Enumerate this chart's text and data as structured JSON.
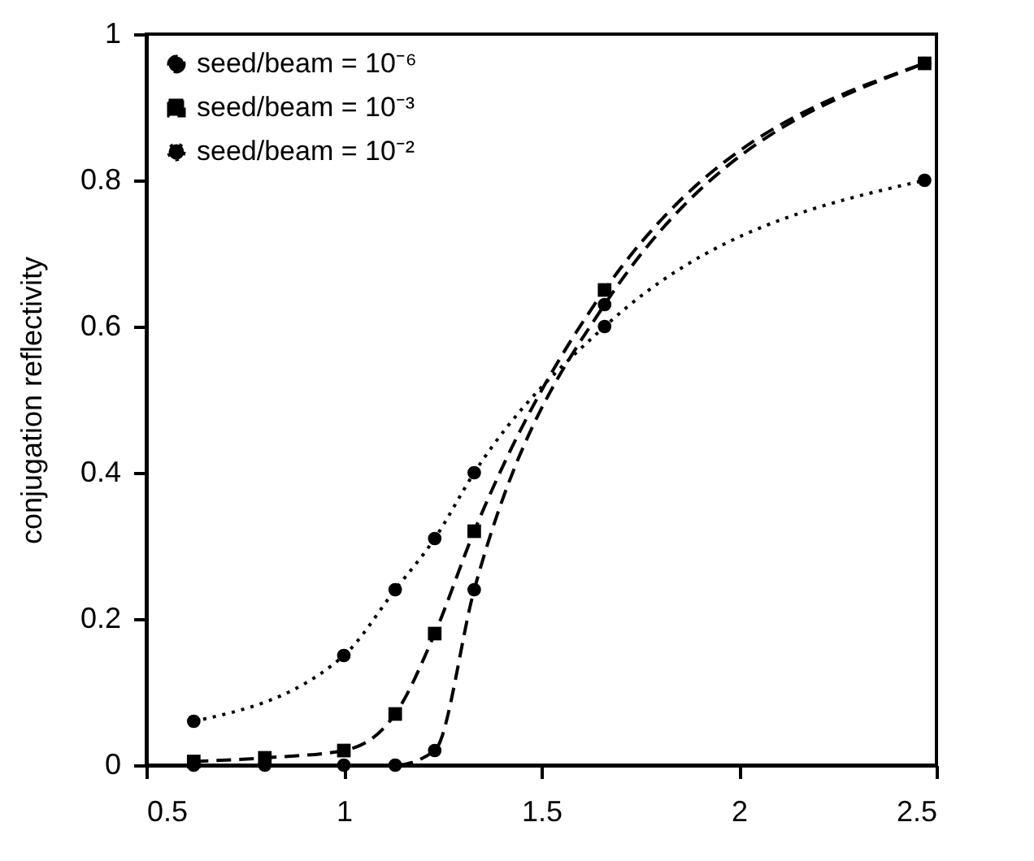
{
  "chart_data": {
    "type": "line",
    "ylabel": "conjugation   reflectivity",
    "xlim": [
      0.5,
      2.5
    ],
    "xticks": [
      0.5,
      1,
      1.5,
      2,
      2.5
    ],
    "ylim": [
      0,
      1
    ],
    "yticks": [
      0,
      0.2,
      0.4,
      0.6,
      0.8,
      1
    ],
    "grid": false,
    "legend": "top left",
    "series": [
      {
        "name": "seed/beam = 10⁻⁶",
        "color": "#000000",
        "line_style": "dashed",
        "marker": "circle",
        "x": [
          0.62,
          0.8,
          1.0,
          1.13,
          1.23,
          1.33,
          1.66,
          2.47
        ],
        "values": [
          0,
          0,
          0,
          0,
          0.02,
          0.24,
          0.63,
          0.96
        ]
      },
      {
        "name": "seed/beam = 10⁻³",
        "color": "#000000",
        "line_style": "dashed",
        "marker": "square",
        "x": [
          0.62,
          0.8,
          1.0,
          1.13,
          1.23,
          1.33,
          1.66,
          2.47
        ],
        "values": [
          0.005,
          0.01,
          0.02,
          0.07,
          0.18,
          0.32,
          0.65,
          0.96
        ]
      },
      {
        "name": "seed/beam = 10⁻²",
        "color": "#000000",
        "line_style": "dotted",
        "marker": "circle",
        "x": [
          0.62,
          1.0,
          1.13,
          1.23,
          1.33,
          1.66,
          2.47
        ],
        "values": [
          0.06,
          0.15,
          0.24,
          0.31,
          0.4,
          0.6,
          0.8
        ]
      }
    ]
  }
}
